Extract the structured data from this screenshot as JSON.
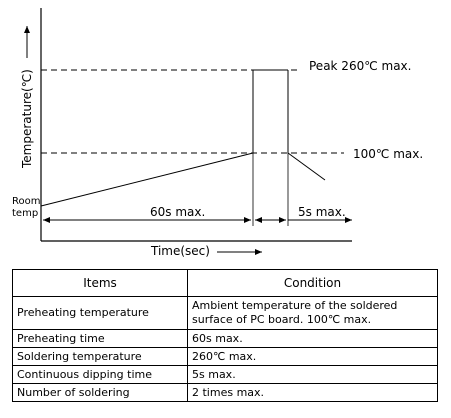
{
  "diagram": {
    "y_axis_label": "Temperature(℃)",
    "x_axis_label": "Time(sec)",
    "room_temp_label_line1": "Room",
    "room_temp_label_line2": "temp",
    "peak_label": "Peak 260℃ max.",
    "preheat_level_label": "100℃ max.",
    "preheat_duration_label": "60s max.",
    "peak_duration_label": "5s max."
  },
  "table": {
    "headers": {
      "items": "Items",
      "condition": "Condition"
    },
    "rows": [
      {
        "item": "Preheating temperature",
        "condition": "Ambient temperature of the soldered surface of  PC board. 100℃ max."
      },
      {
        "item": "Preheating time",
        "condition": "60s max."
      },
      {
        "item": "Soldering temperature",
        "condition": "260℃ max."
      },
      {
        "item": "Continuous dipping time",
        "condition": "5s max."
      },
      {
        "item": "Number of soldering",
        "condition": "2 times max."
      }
    ]
  }
}
